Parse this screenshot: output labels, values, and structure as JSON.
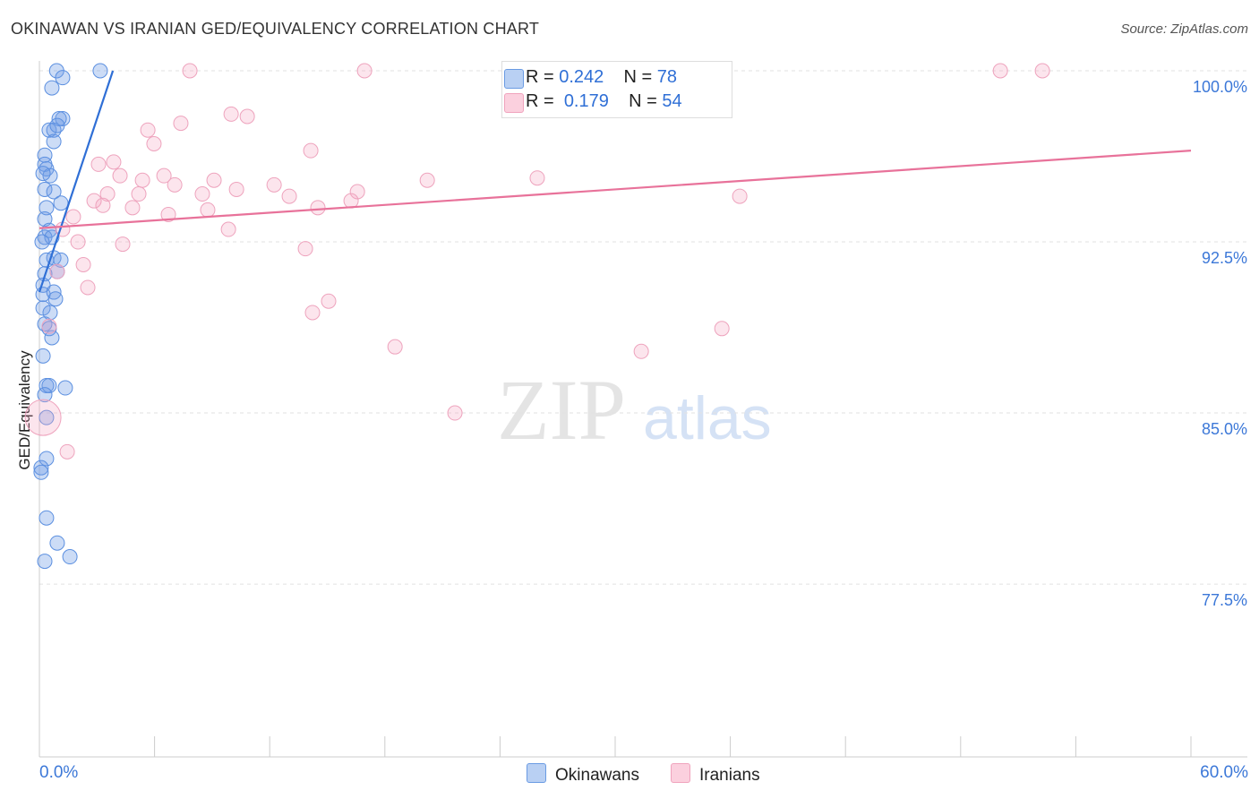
{
  "chart_data": {
    "type": "scatter",
    "title": "OKINAWAN VS IRANIAN GED/EQUIVALENCY CORRELATION CHART",
    "source": "Source: ZipAtlas.com",
    "ylabel": "GED/Equivalency",
    "xlabel": "",
    "xlim": [
      0,
      60
    ],
    "ylim": [
      70,
      100
    ],
    "x_tick_labels": [
      "0.0%",
      "60.0%"
    ],
    "y_ticks": [
      100,
      92.5,
      85,
      77.5
    ],
    "y_tick_labels": [
      "100.0%",
      "92.5%",
      "85.0%",
      "77.5%"
    ],
    "grid": true,
    "watermark": "ZIPatlas",
    "legend": [
      {
        "name": "Okinawans",
        "r_label": "R =",
        "r": "0.242",
        "n_label": "N =",
        "n": "78",
        "color": "#6a9be3"
      },
      {
        "name": "Iranians",
        "r_label": "R =",
        "r": "0.179",
        "n_label": "N =",
        "n": "54",
        "color": "#f0a3bd"
      }
    ],
    "series": [
      {
        "name": "Okinawans",
        "color": "#4a86dc",
        "trend": [
          [
            0,
            90.3
          ],
          [
            3.83,
            100.0
          ]
        ],
        "points": [
          [
            0.9,
            100.0
          ],
          [
            3.17,
            100.0
          ],
          [
            1.21,
            99.7
          ],
          [
            0.65,
            99.25
          ],
          [
            1.21,
            97.9
          ],
          [
            1.03,
            97.9
          ],
          [
            0.51,
            97.4
          ],
          [
            0.75,
            97.4
          ],
          [
            0.93,
            97.6
          ],
          [
            0.75,
            96.9
          ],
          [
            0.28,
            96.3
          ],
          [
            0.28,
            95.9
          ],
          [
            0.37,
            95.7
          ],
          [
            0.56,
            95.4
          ],
          [
            0.19,
            95.5
          ],
          [
            0.28,
            94.8
          ],
          [
            0.75,
            94.7
          ],
          [
            1.12,
            94.2
          ],
          [
            0.37,
            94.0
          ],
          [
            0.28,
            93.5
          ],
          [
            0.51,
            93.0
          ],
          [
            0.28,
            92.7
          ],
          [
            0.65,
            92.7
          ],
          [
            0.14,
            92.5
          ],
          [
            0.37,
            91.7
          ],
          [
            0.75,
            91.8
          ],
          [
            1.12,
            91.7
          ],
          [
            0.28,
            91.1
          ],
          [
            0.93,
            91.2
          ],
          [
            0.19,
            90.6
          ],
          [
            0.19,
            90.2
          ],
          [
            0.75,
            90.3
          ],
          [
            0.84,
            90.0
          ],
          [
            0.19,
            89.6
          ],
          [
            0.56,
            89.4
          ],
          [
            0.28,
            88.9
          ],
          [
            0.51,
            88.7
          ],
          [
            0.65,
            88.3
          ],
          [
            0.19,
            87.5
          ],
          [
            0.37,
            86.2
          ],
          [
            0.51,
            86.2
          ],
          [
            1.35,
            86.1
          ],
          [
            0.28,
            85.8
          ],
          [
            0.37,
            84.8
          ],
          [
            0.37,
            83.0
          ],
          [
            0.09,
            82.6
          ],
          [
            0.09,
            82.4
          ],
          [
            0.37,
            80.4
          ],
          [
            0.93,
            79.3
          ],
          [
            1.59,
            78.7
          ],
          [
            0.28,
            78.5
          ]
        ]
      },
      {
        "name": "Iranians",
        "color": "#e8729a",
        "trend": [
          [
            0,
            93.1
          ],
          [
            60,
            96.5
          ]
        ],
        "points": [
          [
            7.84,
            100.0
          ],
          [
            16.94,
            100.0
          ],
          [
            50.07,
            100.0
          ],
          [
            52.26,
            100.0
          ],
          [
            9.99,
            98.1
          ],
          [
            10.83,
            98.0
          ],
          [
            7.37,
            97.7
          ],
          [
            5.65,
            97.4
          ],
          [
            5.97,
            96.8
          ],
          [
            14.14,
            96.5
          ],
          [
            3.08,
            95.9
          ],
          [
            3.87,
            96.0
          ],
          [
            4.2,
            95.4
          ],
          [
            6.49,
            95.4
          ],
          [
            5.37,
            95.2
          ],
          [
            9.1,
            95.2
          ],
          [
            7.05,
            95.0
          ],
          [
            12.23,
            95.0
          ],
          [
            20.21,
            95.2
          ],
          [
            25.94,
            95.3
          ],
          [
            5.18,
            94.6
          ],
          [
            8.49,
            94.6
          ],
          [
            10.27,
            94.8
          ],
          [
            3.55,
            94.6
          ],
          [
            2.85,
            94.3
          ],
          [
            3.31,
            94.1
          ],
          [
            13.02,
            94.5
          ],
          [
            16.57,
            94.7
          ],
          [
            16.24,
            94.3
          ],
          [
            36.49,
            94.5
          ],
          [
            4.85,
            94.0
          ],
          [
            8.77,
            93.9
          ],
          [
            14.51,
            94.0
          ],
          [
            1.77,
            93.6
          ],
          [
            6.72,
            93.7
          ],
          [
            1.21,
            93.05
          ],
          [
            9.85,
            93.05
          ],
          [
            2.01,
            92.5
          ],
          [
            4.34,
            92.4
          ],
          [
            13.86,
            92.2
          ],
          [
            2.29,
            91.5
          ],
          [
            0.93,
            91.2
          ],
          [
            2.52,
            90.5
          ],
          [
            15.07,
            89.9
          ],
          [
            14.23,
            89.4
          ],
          [
            35.56,
            88.7
          ],
          [
            18.53,
            87.9
          ],
          [
            31.36,
            87.7
          ],
          [
            0.51,
            88.8
          ],
          [
            0.19,
            84.8
          ],
          [
            1.45,
            83.3
          ],
          [
            21.65,
            85.0
          ]
        ]
      }
    ]
  }
}
